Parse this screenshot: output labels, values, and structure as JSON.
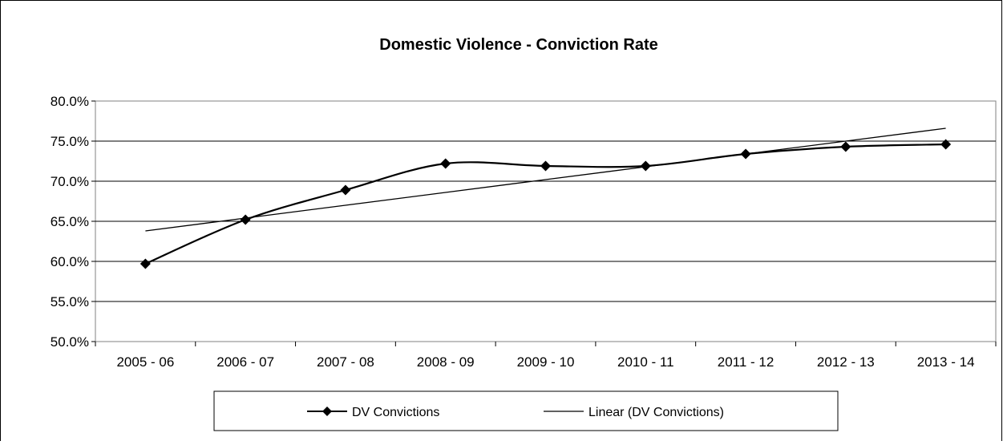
{
  "chart_data": {
    "type": "line",
    "title": "Domestic Violence - Conviction Rate",
    "xlabel": "",
    "ylabel": "",
    "categories": [
      "2005 - 06",
      "2006 - 07",
      "2007 - 08",
      "2008 - 09",
      "2009 - 10",
      "2010 - 11",
      "2011 - 12",
      "2012 - 13",
      "2013 - 14"
    ],
    "series": [
      {
        "name": "DV Convictions",
        "values": [
          59.7,
          65.2,
          68.9,
          72.2,
          71.9,
          71.9,
          73.4,
          74.3,
          74.6
        ],
        "marker": "diamond",
        "smooth": true,
        "color": "#000000"
      },
      {
        "name": "Linear (DV Convictions)",
        "values": [
          63.8,
          65.4,
          67.0,
          68.6,
          70.2,
          71.8,
          73.4,
          75.0,
          76.6
        ],
        "marker": "none",
        "trendline": true,
        "color": "#000000"
      }
    ],
    "ylim": [
      50,
      80
    ],
    "yticks": [
      "50.0%",
      "55.0%",
      "60.0%",
      "65.0%",
      "70.0%",
      "75.0%",
      "80.0%"
    ],
    "grid": true,
    "legend_position": "bottom"
  }
}
